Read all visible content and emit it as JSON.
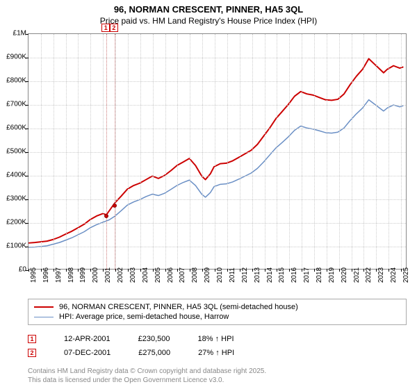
{
  "title": {
    "line1": "96, NORMAN CRESCENT, PINNER, HA5 3QL",
    "line2": "Price paid vs. HM Land Registry's House Price Index (HPI)"
  },
  "chart": {
    "type": "line",
    "background_color": "#ffffff",
    "grid_color": "#cccccc",
    "border_color": "#888888",
    "xlim": [
      1995,
      2025.5
    ],
    "ylim": [
      0,
      1000000
    ],
    "y_ticks": [
      {
        "v": 0,
        "label": "£0"
      },
      {
        "v": 100000,
        "label": "£100K"
      },
      {
        "v": 200000,
        "label": "£200K"
      },
      {
        "v": 300000,
        "label": "£300K"
      },
      {
        "v": 400000,
        "label": "£400K"
      },
      {
        "v": 500000,
        "label": "£500K"
      },
      {
        "v": 600000,
        "label": "£600K"
      },
      {
        "v": 700000,
        "label": "£700K"
      },
      {
        "v": 800000,
        "label": "£800K"
      },
      {
        "v": 900000,
        "label": "£900K"
      },
      {
        "v": 1000000,
        "label": "£1M"
      }
    ],
    "x_ticks": [
      1995,
      1996,
      1997,
      1998,
      1999,
      2000,
      2001,
      2002,
      2003,
      2004,
      2005,
      2006,
      2007,
      2008,
      2009,
      2010,
      2011,
      2012,
      2013,
      2014,
      2015,
      2016,
      2017,
      2018,
      2019,
      2020,
      2021,
      2022,
      2023,
      2024,
      2025
    ],
    "series": [
      {
        "name": "96, NORMAN CRESCENT, PINNER, HA5 3QL (semi-detached house)",
        "color": "#cc0000",
        "line_width": 2,
        "data": [
          [
            1995,
            110000
          ],
          [
            1995.5,
            112000
          ],
          [
            1996,
            115000
          ],
          [
            1996.5,
            118000
          ],
          [
            1997,
            125000
          ],
          [
            1997.5,
            135000
          ],
          [
            1998,
            148000
          ],
          [
            1998.5,
            160000
          ],
          [
            1999,
            175000
          ],
          [
            1999.5,
            190000
          ],
          [
            2000,
            210000
          ],
          [
            2000.5,
            225000
          ],
          [
            2001,
            235000
          ],
          [
            2001.3,
            230500
          ],
          [
            2001.5,
            245000
          ],
          [
            2001.9,
            275000
          ],
          [
            2002,
            282000
          ],
          [
            2002.5,
            310000
          ],
          [
            2003,
            340000
          ],
          [
            2003.5,
            355000
          ],
          [
            2004,
            365000
          ],
          [
            2004.5,
            380000
          ],
          [
            2005,
            395000
          ],
          [
            2005.5,
            385000
          ],
          [
            2006,
            398000
          ],
          [
            2006.5,
            418000
          ],
          [
            2007,
            440000
          ],
          [
            2007.5,
            455000
          ],
          [
            2008,
            470000
          ],
          [
            2008.5,
            440000
          ],
          [
            2009,
            395000
          ],
          [
            2009.3,
            380000
          ],
          [
            2009.7,
            405000
          ],
          [
            2010,
            435000
          ],
          [
            2010.5,
            448000
          ],
          [
            2011,
            450000
          ],
          [
            2011.5,
            460000
          ],
          [
            2012,
            475000
          ],
          [
            2012.5,
            490000
          ],
          [
            2013,
            505000
          ],
          [
            2013.5,
            530000
          ],
          [
            2014,
            565000
          ],
          [
            2014.5,
            600000
          ],
          [
            2015,
            640000
          ],
          [
            2015.5,
            670000
          ],
          [
            2016,
            700000
          ],
          [
            2016.5,
            735000
          ],
          [
            2017,
            755000
          ],
          [
            2017.5,
            745000
          ],
          [
            2018,
            740000
          ],
          [
            2018.5,
            730000
          ],
          [
            2019,
            720000
          ],
          [
            2019.5,
            718000
          ],
          [
            2020,
            722000
          ],
          [
            2020.5,
            745000
          ],
          [
            2021,
            785000
          ],
          [
            2021.5,
            820000
          ],
          [
            2022,
            850000
          ],
          [
            2022.5,
            895000
          ],
          [
            2023,
            870000
          ],
          [
            2023.3,
            855000
          ],
          [
            2023.7,
            835000
          ],
          [
            2024,
            850000
          ],
          [
            2024.5,
            865000
          ],
          [
            2025,
            855000
          ],
          [
            2025.3,
            860000
          ]
        ]
      },
      {
        "name": "HPI: Average price, semi-detached house, Harrow",
        "color": "#6a8fc5",
        "line_width": 1.5,
        "data": [
          [
            1995,
            92000
          ],
          [
            1995.5,
            93000
          ],
          [
            1996,
            95000
          ],
          [
            1996.5,
            98000
          ],
          [
            1997,
            105000
          ],
          [
            1997.5,
            112000
          ],
          [
            1998,
            122000
          ],
          [
            1998.5,
            132000
          ],
          [
            1999,
            145000
          ],
          [
            1999.5,
            158000
          ],
          [
            2000,
            175000
          ],
          [
            2000.5,
            188000
          ],
          [
            2001,
            198000
          ],
          [
            2001.5,
            208000
          ],
          [
            2002,
            225000
          ],
          [
            2002.5,
            248000
          ],
          [
            2003,
            272000
          ],
          [
            2003.5,
            285000
          ],
          [
            2004,
            295000
          ],
          [
            2004.5,
            308000
          ],
          [
            2005,
            318000
          ],
          [
            2005.5,
            312000
          ],
          [
            2006,
            322000
          ],
          [
            2006.5,
            338000
          ],
          [
            2007,
            355000
          ],
          [
            2007.5,
            368000
          ],
          [
            2008,
            378000
          ],
          [
            2008.5,
            355000
          ],
          [
            2009,
            318000
          ],
          [
            2009.3,
            305000
          ],
          [
            2009.7,
            325000
          ],
          [
            2010,
            350000
          ],
          [
            2010.5,
            360000
          ],
          [
            2011,
            362000
          ],
          [
            2011.5,
            370000
          ],
          [
            2012,
            382000
          ],
          [
            2012.5,
            395000
          ],
          [
            2013,
            408000
          ],
          [
            2013.5,
            428000
          ],
          [
            2014,
            455000
          ],
          [
            2014.5,
            485000
          ],
          [
            2015,
            515000
          ],
          [
            2015.5,
            538000
          ],
          [
            2016,
            562000
          ],
          [
            2016.5,
            590000
          ],
          [
            2017,
            608000
          ],
          [
            2017.5,
            600000
          ],
          [
            2018,
            595000
          ],
          [
            2018.5,
            588000
          ],
          [
            2019,
            580000
          ],
          [
            2019.5,
            578000
          ],
          [
            2020,
            582000
          ],
          [
            2020.5,
            600000
          ],
          [
            2021,
            632000
          ],
          [
            2021.5,
            660000
          ],
          [
            2022,
            685000
          ],
          [
            2022.5,
            720000
          ],
          [
            2023,
            700000
          ],
          [
            2023.3,
            688000
          ],
          [
            2023.7,
            672000
          ],
          [
            2024,
            685000
          ],
          [
            2024.5,
            698000
          ],
          [
            2025,
            690000
          ],
          [
            2025.3,
            695000
          ]
        ]
      }
    ],
    "markers": [
      {
        "n": "1",
        "x": 2001.28,
        "y": 230500
      },
      {
        "n": "2",
        "x": 2001.93,
        "y": 275000
      }
    ]
  },
  "legend": {
    "items": [
      {
        "color": "#cc0000",
        "width": 2,
        "label": "96, NORMAN CRESCENT, PINNER, HA5 3QL (semi-detached house)"
      },
      {
        "color": "#6a8fc5",
        "width": 1.5,
        "label": "HPI: Average price, semi-detached house, Harrow"
      }
    ]
  },
  "transactions": [
    {
      "n": "1",
      "date": "12-APR-2001",
      "price": "£230,500",
      "delta": "18% ↑ HPI"
    },
    {
      "n": "2",
      "date": "07-DEC-2001",
      "price": "£275,000",
      "delta": "27% ↑ HPI"
    }
  ],
  "footer": {
    "line1": "Contains HM Land Registry data © Crown copyright and database right 2025.",
    "line2": "This data is licensed under the Open Government Licence v3.0."
  }
}
